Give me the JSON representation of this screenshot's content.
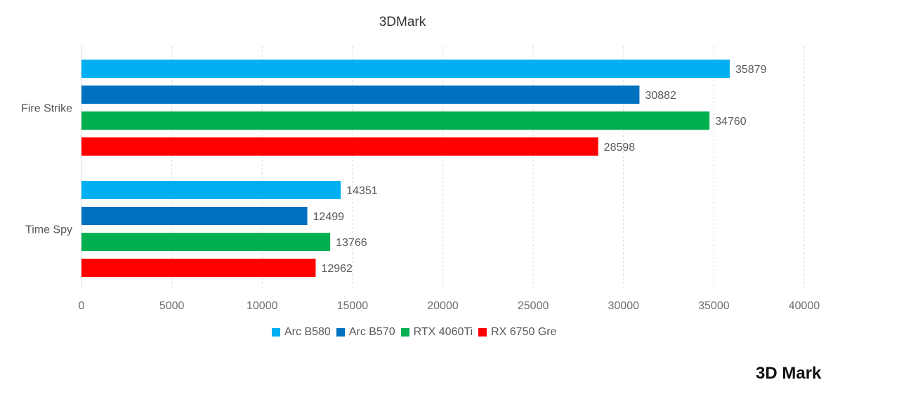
{
  "chart_data": {
    "type": "bar",
    "orientation": "horizontal",
    "title": "3DMark",
    "categories": [
      "Fire Strike",
      "Time Spy"
    ],
    "series": [
      {
        "name": "Arc B580",
        "color": "#00b0f0",
        "values": [
          35879,
          14351
        ]
      },
      {
        "name": "Arc B570",
        "color": "#0070c0",
        "values": [
          30882,
          12499
        ]
      },
      {
        "name": "RTX 4060Ti",
        "color": "#00b050",
        "values": [
          34760,
          13766
        ]
      },
      {
        "name": "RX 6750 Gre",
        "color": "#ff0000",
        "values": [
          28598,
          12962
        ]
      }
    ],
    "xlim": [
      0,
      40000
    ],
    "xticks": [
      "0",
      "5000",
      "10000",
      "15000",
      "20000",
      "25000",
      "30000",
      "35000",
      "40000"
    ],
    "grid": "vertical dashed",
    "legend": "bottom-center",
    "data_labels": true
  },
  "watermark": "3D Mark"
}
